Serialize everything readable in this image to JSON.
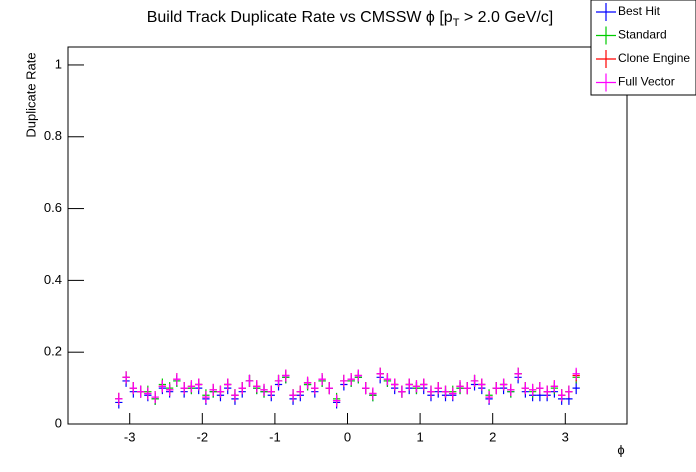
{
  "chart_data": {
    "type": "errorbar",
    "title": [
      "Build Track Duplicate Rate vs CMSSW ϕ [p",
      "T",
      " > 2.0 GeV/c]"
    ],
    "x_label": "ϕ",
    "y_label": "Duplicate Rate",
    "xlim": [
      -3.85,
      3.85
    ],
    "ylim": [
      0,
      1.05
    ],
    "xticks": [
      -3,
      -2,
      -1,
      0,
      1,
      2,
      3
    ],
    "yticks": [
      0,
      0.2,
      0.4,
      0.6,
      0.8,
      1
    ],
    "legend": "top-right",
    "x": [
      -3.15,
      -3.05,
      -2.95,
      -2.85,
      -2.75,
      -2.65,
      -2.55,
      -2.45,
      -2.35,
      -2.25,
      -2.15,
      -2.05,
      -1.95,
      -1.85,
      -1.75,
      -1.65,
      -1.55,
      -1.45,
      -1.35,
      -1.25,
      -1.15,
      -1.05,
      -0.95,
      -0.85,
      -0.75,
      -0.65,
      -0.55,
      -0.45,
      -0.35,
      -0.25,
      -0.15,
      -0.05,
      0.05,
      0.15,
      0.25,
      0.35,
      0.45,
      0.55,
      0.65,
      0.75,
      0.85,
      0.95,
      1.05,
      1.15,
      1.25,
      1.35,
      1.45,
      1.55,
      1.65,
      1.75,
      1.85,
      1.95,
      2.05,
      2.15,
      2.25,
      2.35,
      2.45,
      2.55,
      2.65,
      2.75,
      2.85,
      2.95,
      3.05,
      3.15
    ],
    "series": [
      {
        "name": "Best Hit",
        "color": "#0000ff",
        "values": [
          0.06,
          0.12,
          0.09,
          0.09,
          0.08,
          0.07,
          0.1,
          0.09,
          0.12,
          0.09,
          0.1,
          0.1,
          0.07,
          0.09,
          0.08,
          0.1,
          0.07,
          0.09,
          0.12,
          0.1,
          0.09,
          0.08,
          0.11,
          0.13,
          0.07,
          0.08,
          0.11,
          0.09,
          0.12,
          0.1,
          0.06,
          0.11,
          0.12,
          0.13,
          0.1,
          0.08,
          0.13,
          0.12,
          0.1,
          0.09,
          0.1,
          0.1,
          0.1,
          0.08,
          0.09,
          0.08,
          0.08,
          0.1,
          0.1,
          0.11,
          0.1,
          0.07,
          0.1,
          0.1,
          0.09,
          0.13,
          0.09,
          0.08,
          0.08,
          0.08,
          0.09,
          0.07,
          0.07,
          0.1
        ]
      },
      {
        "name": "Standard",
        "color": "#00cc00",
        "values": [
          0.07,
          0.13,
          0.1,
          0.09,
          0.09,
          0.07,
          0.11,
          0.1,
          0.12,
          0.1,
          0.1,
          0.11,
          0.08,
          0.09,
          0.09,
          0.11,
          0.08,
          0.1,
          0.12,
          0.1,
          0.09,
          0.09,
          0.12,
          0.13,
          0.08,
          0.09,
          0.11,
          0.1,
          0.12,
          0.1,
          0.07,
          0.12,
          0.12,
          0.13,
          0.1,
          0.08,
          0.14,
          0.12,
          0.11,
          0.09,
          0.11,
          0.1,
          0.11,
          0.09,
          0.1,
          0.09,
          0.09,
          0.1,
          0.1,
          0.12,
          0.11,
          0.08,
          0.1,
          0.11,
          0.09,
          0.14,
          0.1,
          0.09,
          0.1,
          0.09,
          0.1,
          0.08,
          0.09,
          0.13
        ]
      },
      {
        "name": "Clone Engine",
        "color": "#ff0000",
        "values": [
          0.07,
          0.13,
          0.1,
          0.09,
          0.085,
          0.075,
          0.105,
          0.095,
          0.125,
          0.1,
          0.105,
          0.11,
          0.075,
          0.095,
          0.09,
          0.11,
          0.08,
          0.1,
          0.12,
          0.105,
          0.095,
          0.09,
          0.12,
          0.135,
          0.08,
          0.09,
          0.115,
          0.1,
          0.125,
          0.1,
          0.065,
          0.12,
          0.125,
          0.135,
          0.1,
          0.085,
          0.14,
          0.125,
          0.11,
          0.09,
          0.11,
          0.105,
          0.11,
          0.09,
          0.1,
          0.09,
          0.085,
          0.105,
          0.1,
          0.12,
          0.11,
          0.075,
          0.1,
          0.11,
          0.095,
          0.14,
          0.1,
          0.095,
          0.1,
          0.09,
          0.105,
          0.08,
          0.09,
          0.135
        ]
      },
      {
        "name": "Full Vector",
        "color": "#ff00ff",
        "values": [
          0.07,
          0.13,
          0.1,
          0.09,
          0.085,
          0.075,
          0.105,
          0.095,
          0.125,
          0.1,
          0.105,
          0.11,
          0.075,
          0.095,
          0.09,
          0.11,
          0.08,
          0.1,
          0.12,
          0.105,
          0.095,
          0.09,
          0.12,
          0.135,
          0.08,
          0.09,
          0.115,
          0.1,
          0.125,
          0.1,
          0.065,
          0.12,
          0.125,
          0.135,
          0.1,
          0.085,
          0.14,
          0.125,
          0.11,
          0.09,
          0.11,
          0.105,
          0.11,
          0.09,
          0.1,
          0.09,
          0.085,
          0.105,
          0.1,
          0.12,
          0.11,
          0.075,
          0.1,
          0.11,
          0.095,
          0.14,
          0.1,
          0.095,
          0.1,
          0.09,
          0.105,
          0.08,
          0.09,
          0.14
        ]
      }
    ]
  }
}
